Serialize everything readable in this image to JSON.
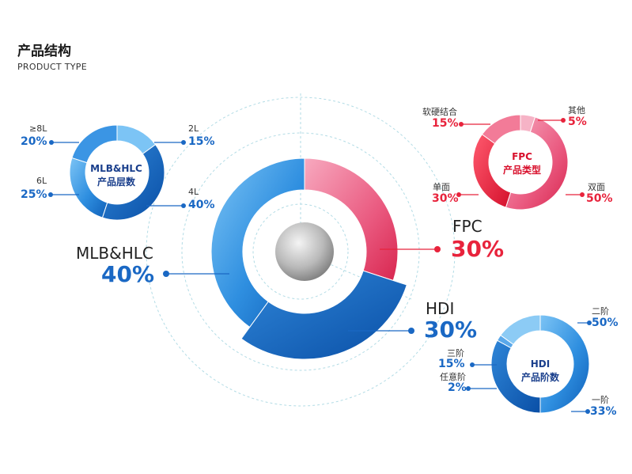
{
  "page": {
    "title": "产品结构",
    "subtitle": "PRODUCT TYPE"
  },
  "colors": {
    "blue": "#1a68c4",
    "red": "#e8233c",
    "pink": "#f08aa6"
  },
  "chart_data": [
    {
      "type": "pie",
      "title": "",
      "categories": [
        "MLB&HLC",
        "FPC",
        "HDI"
      ],
      "values": [
        40,
        30,
        30
      ],
      "labels": {
        "mlb_name": "MLB&HLC",
        "mlb_val": "40%",
        "fpc_name": "FPC",
        "fpc_val": "30%",
        "hdi_name": "HDI",
        "hdi_val": "30%"
      }
    },
    {
      "type": "pie",
      "title": "MLB&HLC产品层数",
      "center_line1": "MLB&HLC",
      "center_line2": "产品层数",
      "categories": [
        "2L",
        "4L",
        "6L",
        "≥8L"
      ],
      "values": [
        15,
        40,
        25,
        20
      ],
      "labels": {
        "l2_name": "2L",
        "l2_val": "15%",
        "l4_name": "4L",
        "l4_val": "40%",
        "l6_name": "6L",
        "l6_val": "25%",
        "l8_name": "≥8L",
        "l8_val": "20%"
      }
    },
    {
      "type": "pie",
      "title": "FPC产品类型",
      "center_line1": "FPC",
      "center_line2": "产品类型",
      "categories": [
        "其他",
        "双面",
        "单面",
        "软硬结合"
      ],
      "values": [
        5,
        50,
        30,
        15
      ],
      "labels": {
        "other_name": "其他",
        "other_val": "5%",
        "double_name": "双面",
        "double_val": "50%",
        "single_name": "单面",
        "single_val": "30%",
        "rigid_name": "软硬结合",
        "rigid_val": "15%"
      }
    },
    {
      "type": "pie",
      "title": "HDI产品阶数",
      "center_line1": "HDI",
      "center_line2": "产品阶数",
      "categories": [
        "二阶",
        "一阶",
        "任意阶",
        "三阶"
      ],
      "values": [
        50,
        33,
        2,
        15
      ],
      "labels": {
        "o2_name": "二阶",
        "o2_val": "50%",
        "o1_name": "一阶",
        "o1_val": "33%",
        "any_name": "任意阶",
        "any_val": "2%",
        "o3_name": "三阶",
        "o3_val": "15%"
      }
    }
  ]
}
